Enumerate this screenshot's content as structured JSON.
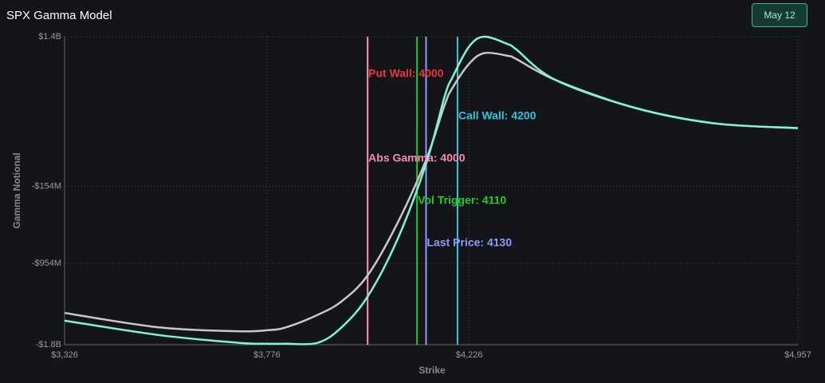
{
  "chart_data": {
    "type": "line",
    "title": "SPX Gamma Model",
    "date_button": "May 12",
    "x_label": "Strike",
    "y_label": "Gamma Notional",
    "x": [
      3326,
      3536,
      3712,
      3776,
      3818,
      3889,
      3942,
      4000,
      4066,
      4130,
      4172,
      4189,
      4226,
      4260,
      4313,
      4330,
      4418,
      4595,
      4771,
      4957
    ],
    "series": [
      {
        "color": "#c8c8c8",
        "values": [
          -1470000000,
          -1620000000,
          -1660000000,
          -1650000000,
          -1620000000,
          -1490000000,
          -1350000000,
          -1080000000,
          -540000000,
          120000000,
          700000000,
          870000000,
          1120000000,
          1230000000,
          1200000000,
          1170000000,
          950000000,
          660000000,
          500000000,
          450000000
        ]
      },
      {
        "color": "#7ff5d2",
        "values": [
          -1550000000,
          -1700000000,
          -1780000000,
          -1790000000,
          -1790000000,
          -1780000000,
          -1620000000,
          -1300000000,
          -710000000,
          80000000,
          790000000,
          980000000,
          1300000000,
          1400000000,
          1320000000,
          1270000000,
          950000000,
          660000000,
          500000000,
          450000000
        ]
      }
    ],
    "markers": [
      {
        "label": "Put Wall: 4000",
        "value": 4000,
        "color": "#e8363a"
      },
      {
        "label": "Abs Gamma: 4000",
        "value": 4000,
        "color": "#f28cb4"
      },
      {
        "label": "Vol Trigger: 4110",
        "value": 4110,
        "color": "#27cc2b"
      },
      {
        "label": "Last Price: 4130",
        "value": 4130,
        "color": "#8f9cff"
      },
      {
        "label": "Call Wall: 4200",
        "value": 4200,
        "color": "#27c6d8"
      }
    ],
    "xlim": [
      3326,
      4957
    ],
    "xticks": [
      {
        "value": 3326,
        "label": "$3,326"
      },
      {
        "value": 3776,
        "label": "$3,776"
      },
      {
        "value": 4226,
        "label": "$4,226"
      },
      {
        "value": 4957,
        "label": "$4,957"
      }
    ],
    "ylim": [
      -1800000000,
      1400000000
    ],
    "yticks": [
      {
        "value": 1400000000,
        "label": "$1.4B"
      },
      {
        "value": -154000000,
        "label": "-$154M"
      },
      {
        "value": -954000000,
        "label": "-$954M"
      },
      {
        "value": -1800000000,
        "label": "-$1.8B"
      }
    ],
    "grid": true
  }
}
